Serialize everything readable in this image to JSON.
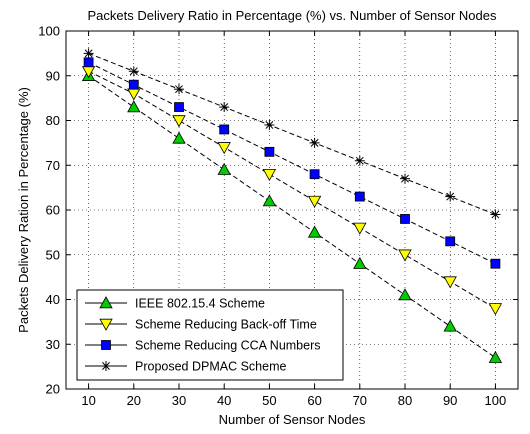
{
  "chart_data": {
    "type": "line",
    "title": "Packets Delivery Ratio in Percentage (%) vs. Number of Sensor Nodes",
    "xlabel": "Number of Sensor Nodes",
    "ylabel": "Packets Delivery Ration in Percentage (%)",
    "x": [
      10,
      20,
      30,
      40,
      50,
      60,
      70,
      80,
      90,
      100
    ],
    "xlim": [
      5,
      105
    ],
    "ylim": [
      20,
      100
    ],
    "xticks": [
      10,
      20,
      30,
      40,
      50,
      60,
      70,
      80,
      90,
      100
    ],
    "yticks": [
      20,
      30,
      40,
      50,
      60,
      70,
      80,
      90,
      100
    ],
    "grid": true,
    "legend_position": "bottom-left",
    "series": [
      {
        "name": "IEEE 802.15.4 Scheme",
        "marker": "triangle-up",
        "color": "#00cc00",
        "values": [
          90,
          83,
          76,
          69,
          62,
          55,
          48,
          41,
          34,
          27
        ]
      },
      {
        "name": "Scheme Reducing Back-off Time",
        "marker": "triangle-down",
        "color": "#ffff00",
        "values": [
          91,
          86,
          80,
          74,
          68,
          62,
          56,
          50,
          44,
          38
        ]
      },
      {
        "name": "Scheme Reducing CCA Numbers",
        "marker": "square",
        "color": "#0000ff",
        "values": [
          93,
          88,
          83,
          78,
          73,
          68,
          63,
          58,
          53,
          48
        ]
      },
      {
        "name": "Proposed DPMAC Scheme",
        "marker": "star",
        "color": "#000000",
        "values": [
          95,
          91,
          87,
          83,
          79,
          75,
          71,
          67,
          63,
          59
        ]
      }
    ]
  }
}
